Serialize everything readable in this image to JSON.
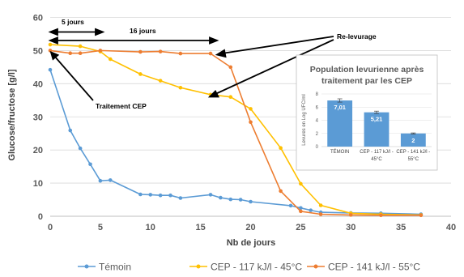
{
  "chart_data": {
    "type": "line",
    "title": "",
    "xlabel": "Nb de jours",
    "ylabel": "Glucose/fructose [g/l]",
    "xlim": [
      0,
      40
    ],
    "ylim": [
      0,
      60
    ],
    "x_ticks": [
      "0",
      "5",
      "10",
      "15",
      "20",
      "25",
      "30",
      "35",
      "40"
    ],
    "y_ticks": [
      "0",
      "10",
      "20",
      "30",
      "40",
      "50",
      "60"
    ],
    "grid": "horizontal",
    "legend_position": "bottom",
    "series": [
      {
        "name": "Témoin",
        "color": "#5b9bd5",
        "points": [
          [
            0,
            44.2
          ],
          [
            2,
            25.9
          ],
          [
            3,
            20.5
          ],
          [
            4,
            15.7
          ],
          [
            5,
            10.7
          ],
          [
            6,
            10.9
          ],
          [
            9,
            6.6
          ],
          [
            10,
            6.5
          ],
          [
            11,
            6.3
          ],
          [
            12,
            6.3
          ],
          [
            13,
            5.5
          ],
          [
            16,
            6.5
          ],
          [
            17,
            5.6
          ],
          [
            18,
            5.1
          ],
          [
            19,
            5.0
          ],
          [
            20,
            4.4
          ],
          [
            24,
            3.2
          ],
          [
            25,
            2.5
          ],
          [
            26,
            1.8
          ],
          [
            27,
            1.2
          ],
          [
            30,
            1.0
          ],
          [
            33,
            0.9
          ],
          [
            37,
            0.6
          ]
        ]
      },
      {
        "name": "CEP - 117 kJ/l - 45°C",
        "color": "#ffc000",
        "points": [
          [
            0,
            51.8
          ],
          [
            3,
            51.3
          ],
          [
            5,
            49.7
          ],
          [
            6,
            47.4
          ],
          [
            9,
            42.9
          ],
          [
            11,
            40.9
          ],
          [
            13,
            38.8
          ],
          [
            16,
            36.7
          ],
          [
            18,
            36.0
          ],
          [
            20,
            32.4
          ],
          [
            23,
            20.6
          ],
          [
            25,
            9.8
          ],
          [
            27,
            3.3
          ],
          [
            30,
            0.9
          ],
          [
            33,
            0.6
          ],
          [
            37,
            0.4
          ]
        ]
      },
      {
        "name": "CEP - 141 kJ/l - 55°C",
        "color": "#ed7d31",
        "points": [
          [
            0,
            50.0
          ],
          [
            2,
            49.2
          ],
          [
            3,
            49.2
          ],
          [
            5,
            50.0
          ],
          [
            9,
            49.6
          ],
          [
            11,
            49.7
          ],
          [
            13,
            49.1
          ],
          [
            16,
            49.1
          ],
          [
            18,
            45.0
          ],
          [
            20,
            28.4
          ],
          [
            23,
            7.6
          ],
          [
            25,
            1.5
          ],
          [
            27,
            0.6
          ],
          [
            30,
            0.4
          ],
          [
            33,
            0.3
          ],
          [
            37,
            0.3
          ]
        ]
      }
    ],
    "annotations": {
      "five_days": "5 jours",
      "sixteen_days": "16 jours",
      "relevurage": "Re-levurage",
      "traitement": "Traitement CEP"
    },
    "inset": {
      "type": "bar",
      "title_line1": "Population levurienne après",
      "title_line2": "traitement par les CEP",
      "ylabel": "Levures en Log UFC/ml",
      "ylim": [
        0,
        8
      ],
      "y_ticks": [
        "0",
        "2",
        "4",
        "6",
        "8"
      ],
      "bar_color": "#5b9bd5",
      "categories": [
        [
          "TÉMOIN"
        ],
        [
          "CEP - 117 kJ/l -",
          "45°C"
        ],
        [
          "CEP - 141 kJ/l -",
          "55°C"
        ]
      ],
      "values": [
        7.01,
        5.21,
        2
      ],
      "value_labels": [
        "7,01",
        "5,21",
        "2"
      ],
      "error": [
        0.25,
        0.18,
        0.08
      ]
    }
  }
}
